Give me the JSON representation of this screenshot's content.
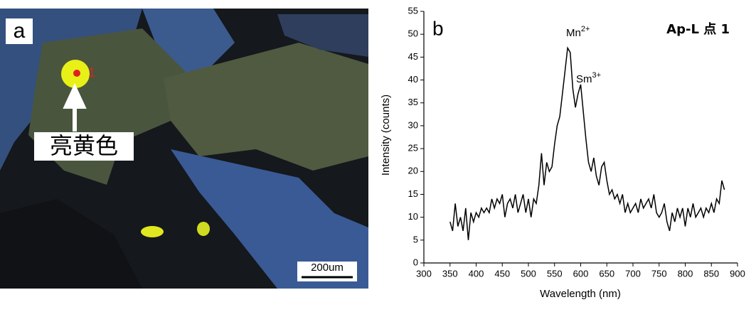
{
  "image_panel": {
    "panel_label": "a",
    "point_label": "1",
    "callout": "亮黄色",
    "scale_bar": "200um"
  },
  "chart_data": {
    "type": "line",
    "panel_label": "b",
    "title": "Ap-L  点 1",
    "xlabel": "Wavelength (nm)",
    "ylabel": "Intensity (counts)",
    "annotations": [
      {
        "text": "Mn",
        "sup": "2+"
      },
      {
        "text": "Sm",
        "sup": "3+"
      }
    ],
    "xlim": [
      300,
      900
    ],
    "xticks": [
      300,
      350,
      400,
      450,
      500,
      550,
      600,
      650,
      700,
      750,
      800,
      850,
      900
    ],
    "ylim": [
      0,
      55
    ],
    "yticks": [
      0,
      5,
      10,
      15,
      20,
      25,
      30,
      35,
      40,
      45,
      50,
      55
    ],
    "x": [
      350,
      355,
      360,
      365,
      370,
      375,
      380,
      385,
      390,
      395,
      400,
      405,
      410,
      415,
      420,
      425,
      430,
      435,
      440,
      445,
      450,
      455,
      460,
      465,
      470,
      475,
      480,
      485,
      490,
      495,
      500,
      505,
      510,
      515,
      520,
      525,
      530,
      535,
      540,
      545,
      550,
      555,
      560,
      565,
      570,
      575,
      580,
      585,
      590,
      595,
      600,
      605,
      610,
      615,
      620,
      625,
      630,
      635,
      640,
      645,
      650,
      655,
      660,
      665,
      670,
      675,
      680,
      685,
      690,
      695,
      700,
      705,
      710,
      715,
      720,
      725,
      730,
      735,
      740,
      745,
      750,
      755,
      760,
      765,
      770,
      775,
      780,
      785,
      790,
      795,
      800,
      805,
      810,
      815,
      820,
      825,
      830,
      835,
      840,
      845,
      850,
      855,
      860,
      865,
      870,
      875
    ],
    "series": [
      {
        "color": "#000000",
        "values": [
          9,
          7,
          13,
          8,
          10,
          7,
          12,
          5,
          11,
          9,
          11,
          10,
          12,
          11,
          12,
          11,
          14,
          12,
          14,
          13,
          15,
          10,
          13,
          14,
          12,
          15,
          11,
          13,
          15,
          11,
          14,
          10,
          14,
          13,
          17,
          24,
          17,
          22,
          20,
          21,
          26,
          30,
          32,
          37,
          42,
          47,
          46,
          38,
          34,
          37,
          39,
          33,
          27,
          22,
          20,
          23,
          19,
          17,
          21,
          22,
          18,
          15,
          16,
          14,
          15,
          13,
          15,
          11,
          13,
          11,
          12,
          13,
          11,
          14,
          12,
          13,
          14,
          12,
          15,
          11,
          10,
          11,
          13,
          9,
          7,
          11,
          9,
          12,
          10,
          12,
          8,
          12,
          10,
          13,
          10,
          11,
          12,
          10,
          12,
          11,
          13,
          11,
          14,
          13,
          18,
          16
        ]
      }
    ]
  }
}
